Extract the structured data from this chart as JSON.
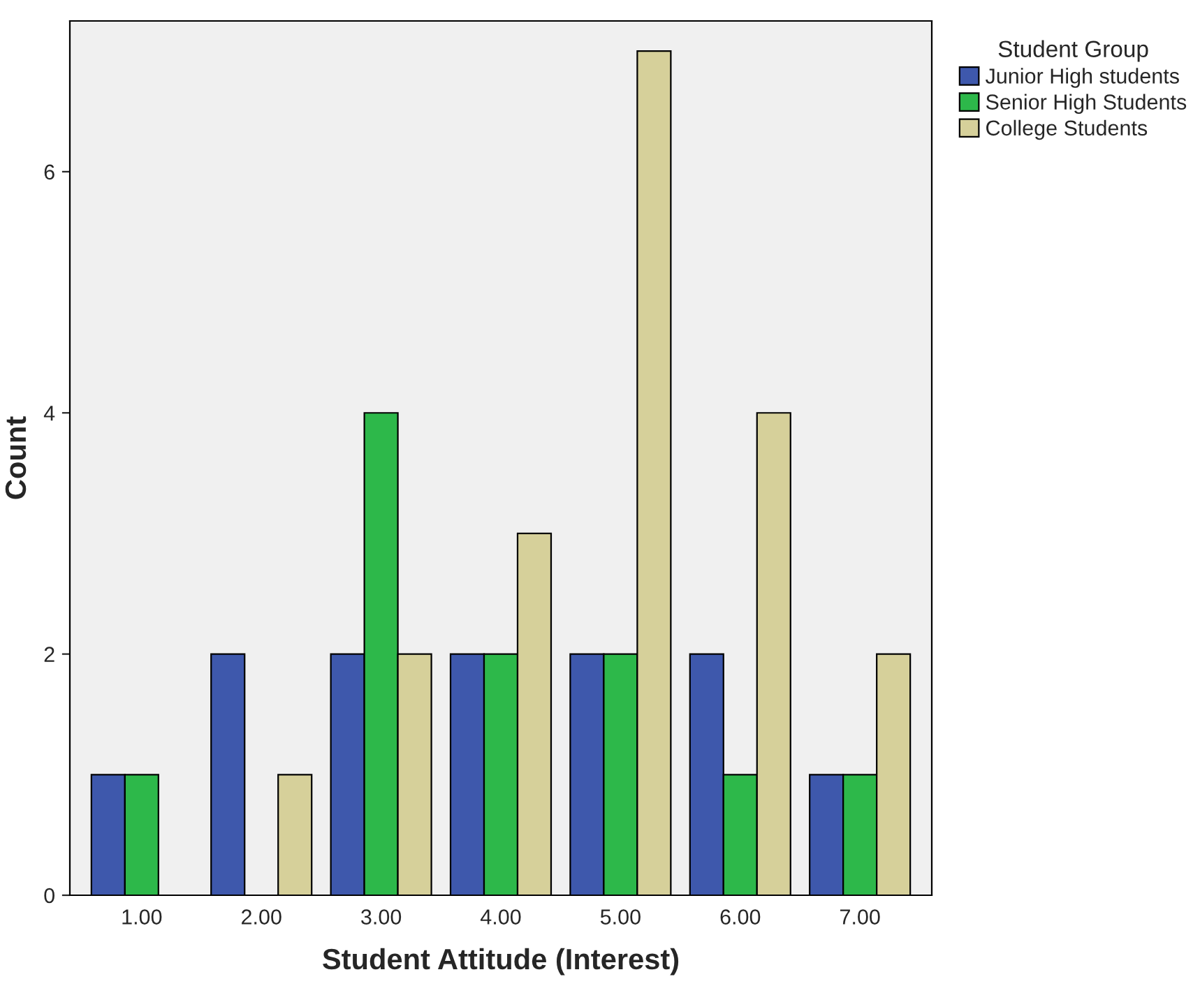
{
  "chart_data": {
    "type": "bar",
    "xlabel": "Student Attitude (Interest)",
    "ylabel": "Count",
    "legend_title": "Student Group",
    "categories": [
      "1.00",
      "2.00",
      "3.00",
      "4.00",
      "5.00",
      "6.00",
      "7.00"
    ],
    "series": [
      {
        "name": "Junior High students",
        "color": "#3e58ac",
        "values": [
          1,
          2,
          2,
          2,
          2,
          2,
          1
        ]
      },
      {
        "name": "Senior High Students",
        "color": "#2db84a",
        "values": [
          1,
          0,
          4,
          2,
          2,
          1,
          1
        ]
      },
      {
        "name": "College Students",
        "color": "#d6d09a",
        "values": [
          0,
          1,
          2,
          3,
          7,
          4,
          2
        ]
      }
    ],
    "ylim": [
      0,
      7.25
    ],
    "yticks": [
      0,
      2,
      4,
      6
    ],
    "grid": false,
    "legend": "top right"
  }
}
